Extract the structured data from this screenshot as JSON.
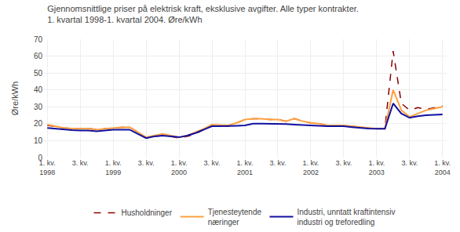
{
  "chart_data": {
    "type": "line",
    "title": "Gjennomsnittlige priser på elektrisk kraft, eksklusive avgifter. Alle typer kontrakter.",
    "subtitle": "1. kvartal 1998-1. kvartal 2004. Øre/kWh",
    "ylabel": "Øre/kWh",
    "categories": [
      "1. kv.\n1998",
      null,
      null,
      null,
      "3. kv.",
      null,
      null,
      null,
      "1. kv.\n1999",
      null,
      null,
      null,
      "3. kv.",
      null,
      null,
      null,
      "1. kv.\n2000",
      null,
      null,
      null,
      "3. kv.",
      null,
      null,
      null,
      "1. kv.\n2001",
      null,
      null,
      null,
      "3. kv.",
      null,
      null,
      null,
      "1. kv.\n2002",
      null,
      null,
      null,
      "3. kv.",
      null,
      null,
      null,
      "1. kv.\n2003",
      null,
      null,
      null,
      "3. kv.",
      null,
      null,
      null,
      "1. kv.\n2004"
    ],
    "series": [
      {
        "name": "Husholdninger",
        "color": "#8B0000",
        "line_style": "dashed",
        "values": [
          19.0,
          18.2,
          17.5,
          17.2,
          17.0,
          17.2,
          16.5,
          17.0,
          17.5,
          17.8,
          18.0,
          15.0,
          11.5,
          12.5,
          13.0,
          12.5,
          11.5,
          12.5,
          14.0,
          16.5,
          19.0,
          18.8,
          18.5,
          20.5,
          22.5,
          23.0,
          23.0,
          22.5,
          22.5,
          21.5,
          23.0,
          21.5,
          20.5,
          20.0,
          19.0,
          19.0,
          19.0,
          18.5,
          18.0,
          17.5,
          17.0,
          17.0,
          63.0,
          32.0,
          28.0,
          29.5,
          28.5,
          29.5,
          30.5
        ]
      },
      {
        "name": "Tjenesteytende\nnæringer",
        "color": "#FFA040",
        "line_style": "solid",
        "values": [
          19.5,
          18.5,
          17.5,
          17.2,
          17.0,
          17.2,
          16.5,
          17.0,
          17.5,
          17.8,
          18.0,
          15.0,
          12.0,
          13.0,
          14.0,
          13.0,
          12.0,
          13.0,
          15.0,
          17.0,
          19.5,
          19.2,
          19.0,
          20.5,
          22.5,
          23.0,
          23.0,
          22.5,
          22.5,
          21.5,
          23.0,
          21.5,
          20.5,
          20.0,
          19.0,
          19.0,
          19.0,
          18.5,
          18.0,
          17.5,
          17.0,
          17.0,
          40.0,
          28.0,
          24.0,
          26.0,
          28.0,
          29.0,
          30.0
        ]
      },
      {
        "name": "Industri, unntatt kraftintensiv\nindustri og treforedling",
        "color": "#1010A0",
        "line_style": "solid",
        "values": [
          17.5,
          17.0,
          16.5,
          16.2,
          16.0,
          16.0,
          15.5,
          16.0,
          16.5,
          16.5,
          16.5,
          14.0,
          11.5,
          12.5,
          13.0,
          12.5,
          12.0,
          13.0,
          14.5,
          16.5,
          18.5,
          18.5,
          18.5,
          18.8,
          19.0,
          20.0,
          20.0,
          20.0,
          20.0,
          19.8,
          19.5,
          19.2,
          19.0,
          18.8,
          18.5,
          18.5,
          18.5,
          18.0,
          17.5,
          17.2,
          17.0,
          17.0,
          32.0,
          26.0,
          23.5,
          24.5,
          25.0,
          25.2,
          25.5
        ]
      }
    ],
    "ylim": [
      0,
      70
    ],
    "yticks": [
      0,
      10,
      20,
      30,
      40,
      50,
      60,
      70
    ],
    "grid": true,
    "legend": "bottom"
  }
}
